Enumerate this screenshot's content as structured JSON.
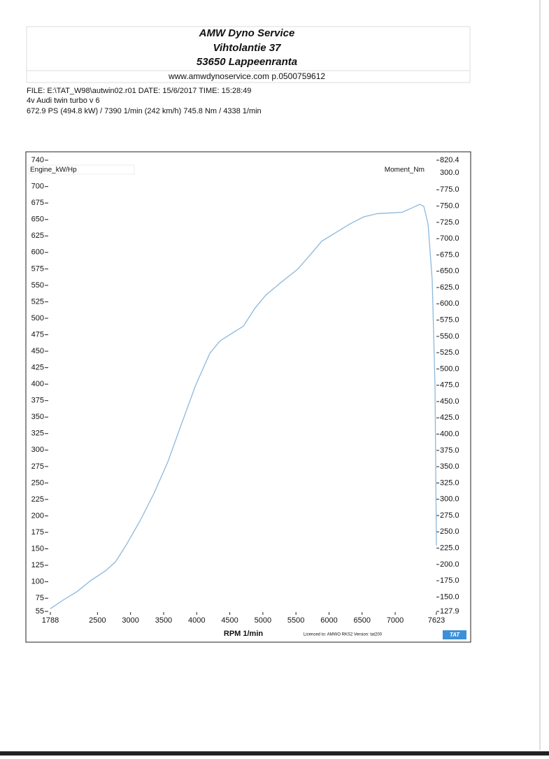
{
  "header": {
    "lines": [
      "AMW Dyno Service",
      "Vihtolantie 37",
      "53650 Lappeenranta"
    ],
    "contact": "www.amwdynoservice.com p.0500759612"
  },
  "info": [
    "FILE: E:\\TAT_W98\\autwin02.r01  DATE: 15/6/2017  TIME: 15:28:49",
    "4v  Audi   twin turbo v 6",
    "672.9 PS  (494.8 kW) / 7390 1/min (242 km/h)    745.8 Nm / 4338 1/min"
  ],
  "chart_data": {
    "type": "line",
    "y_label": "Engine_kW/Hp",
    "y2_label": "Moment_Nm",
    "x_label": "RPM  1/min",
    "annotations": [
      "300.0",
      "Licenced to: AMWO RKS2  Version: tat200",
      "TAT"
    ],
    "xlim": [
      1788,
      7623
    ],
    "xticks": [
      1788,
      2500,
      3000,
      3500,
      4000,
      4500,
      5000,
      5500,
      6000,
      6500,
      7000,
      7623
    ],
    "ylim": [
      55,
      740
    ],
    "yticks": [
      55,
      75,
      100,
      125,
      150,
      175,
      200,
      225,
      250,
      275,
      300,
      325,
      350,
      375,
      400,
      425,
      450,
      475,
      500,
      525,
      550,
      575,
      600,
      625,
      650,
      675,
      700,
      740
    ],
    "y2lim": [
      127.9,
      820.4
    ],
    "y2ticks": [
      127.9,
      {
        "value": 150,
        "label": "150.0"
      },
      {
        "value": 175,
        "label": "175.0"
      },
      {
        "value": 200,
        "label": "200.0"
      },
      {
        "value": 225,
        "label": "225.0"
      },
      {
        "value": 250,
        "label": "250.0"
      },
      {
        "value": 275,
        "label": "275.0"
      },
      {
        "value": 300,
        "label": "300.0"
      },
      {
        "value": 325,
        "label": "325.0"
      },
      {
        "value": 350,
        "label": "350.0"
      },
      {
        "value": 375,
        "label": "375.0"
      },
      {
        "value": 400,
        "label": "400.0"
      },
      {
        "value": 425,
        "label": "425.0"
      },
      {
        "value": 450,
        "label": "450.0"
      },
      {
        "value": 475,
        "label": "475.0"
      },
      {
        "value": 500,
        "label": "500.0"
      },
      {
        "value": 525,
        "label": "525.0"
      },
      {
        "value": 550,
        "label": "550.0"
      },
      {
        "value": 575,
        "label": "575.0"
      },
      {
        "value": 600,
        "label": "600.0"
      },
      {
        "value": 625,
        "label": "625.0"
      },
      {
        "value": 650,
        "label": "650.0"
      },
      {
        "value": 675,
        "label": "675.0"
      },
      {
        "value": 700,
        "label": "700.0"
      },
      {
        "value": 725,
        "label": "725.0"
      },
      {
        "value": 750,
        "label": "750.0"
      },
      {
        "value": 775,
        "label": "775.0"
      },
      820.4
    ],
    "x": [
      1788,
      1978,
      2190,
      2401,
      2613,
      2771,
      2930,
      3141,
      3353,
      3564,
      3775,
      3987,
      4199,
      4357,
      4515,
      4706,
      4885,
      5044,
      5255,
      5520,
      5678,
      5890,
      6101,
      6312,
      6524,
      6735,
      6947,
      7105,
      7264,
      7370,
      7433,
      7497,
      7560,
      7602,
      7623
    ],
    "series": [
      {
        "color": "#8cb8dc",
        "values": [
          59,
          72,
          85,
          102,
          116,
          130,
          155,
          192,
          234,
          282,
          341,
          399,
          447,
          466,
          476,
          488,
          516,
          535,
          553,
          574,
          592,
          617,
          630,
          643,
          654,
          659,
          660,
          661,
          668,
          673,
          670,
          643,
          558,
          399,
          155
        ]
      }
    ]
  }
}
